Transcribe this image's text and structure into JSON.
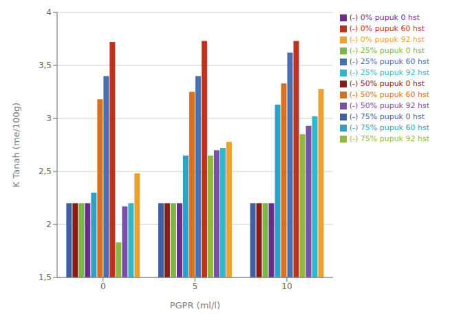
{
  "chart_data": {
    "type": "bar",
    "xlabel": "PGPR (ml/l)",
    "ylabel": "K Tanah (me/100g)",
    "categories": [
      "0",
      "5",
      "10"
    ],
    "series": [
      {
        "name": "(-) 75% pupuk 0 hst",
        "color": "#3F5FA0",
        "values": [
          2.2,
          2.2,
          2.2
        ]
      },
      {
        "name": "(-) 50% pupuk 0 hst",
        "color": "#8B1A1A",
        "values": [
          2.2,
          2.2,
          2.2
        ]
      },
      {
        "name": "(-) 25% pupuk 0 hst",
        "color": "#7AB648",
        "values": [
          2.2,
          2.2,
          2.2
        ]
      },
      {
        "name": "(-) 0% pupuk 0 hst",
        "color": "#6A2D8F",
        "values": [
          2.2,
          2.2,
          2.2
        ]
      },
      {
        "name": "(-) 75% pupuk 60 hst",
        "color": "#30A0C8",
        "values": [
          2.3,
          2.65,
          3.13
        ]
      },
      {
        "name": "(-) 50% pupuk 60 hst",
        "color": "#D87020",
        "values": [
          3.18,
          3.25,
          3.33
        ]
      },
      {
        "name": "(-) 25% pupuk 60 hst",
        "color": "#4A6FAF",
        "values": [
          3.4,
          3.4,
          3.62
        ]
      },
      {
        "name": "(-) 0% pupuk 60 hst",
        "color": "#C03020",
        "values": [
          3.72,
          3.73,
          3.73
        ]
      },
      {
        "name": "(-) 75% pupuk 92 hst",
        "color": "#90B840",
        "values": [
          1.83,
          2.65,
          2.85
        ]
      },
      {
        "name": "(-) 50% pupuk 92 hst",
        "color": "#7B50A8",
        "values": [
          2.17,
          2.7,
          2.93
        ]
      },
      {
        "name": "(-) 25% pupuk 92 hst",
        "color": "#30B8C8",
        "values": [
          2.2,
          2.72,
          3.02
        ]
      },
      {
        "name": "(-) 0% pupuk 92 hst",
        "color": "#F0A030",
        "values": [
          2.48,
          2.78,
          3.28
        ]
      }
    ],
    "ylim": [
      1.5,
      4.0
    ],
    "yticks": [
      {
        "value": 1.5,
        "label": "1,5"
      },
      2,
      {
        "value": 2.5,
        "label": "2,5"
      },
      3,
      {
        "value": 3.5,
        "label": "3,5"
      },
      4
    ],
    "grid": true,
    "legend": "right"
  }
}
